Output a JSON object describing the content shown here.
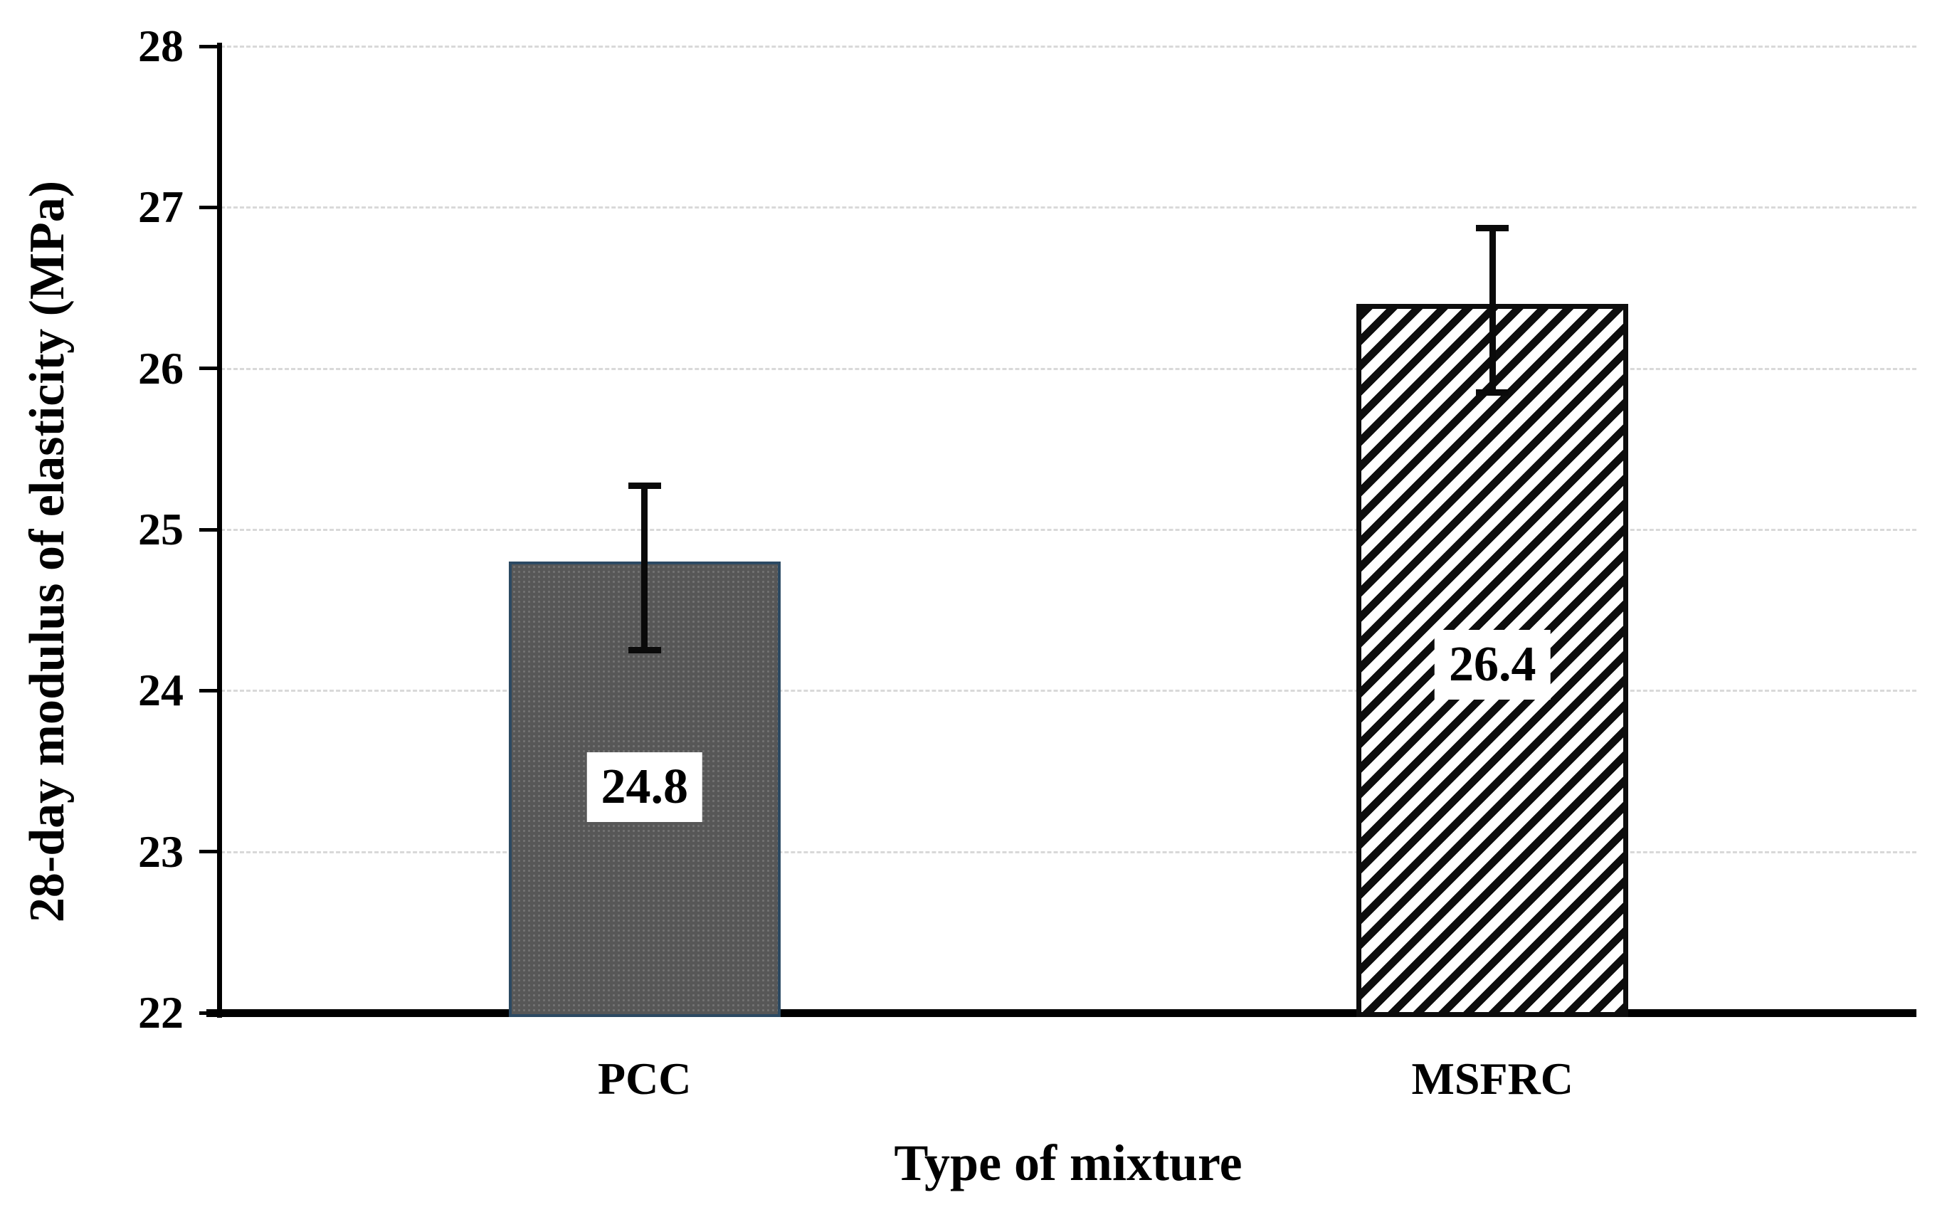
{
  "chart_data": {
    "type": "bar",
    "title": "",
    "xlabel": "Type of mixture",
    "ylabel": "28-day modulus of elasticity (MPa)",
    "categories": [
      "PCC",
      "MSFRC"
    ],
    "values": [
      24.8,
      26.4
    ],
    "data_labels": [
      "24.8",
      "26.4"
    ],
    "label_y_positions": [
      23.4,
      24.16
    ],
    "error_bars": [
      {
        "low": 24.25,
        "high": 25.27
      },
      {
        "low": 25.85,
        "high": 26.87
      }
    ],
    "ylim": [
      22,
      28
    ],
    "yticks": [
      22,
      23,
      24,
      25,
      26,
      27,
      28
    ],
    "grid": {
      "horizontal": true,
      "style": "dashed",
      "vertical": false
    },
    "legend": "none",
    "bar_styles": [
      {
        "category": "PCC",
        "pattern": "dotted-texture",
        "fill": "#575757",
        "border": "#2c4a63"
      },
      {
        "category": "MSFRC",
        "pattern": "diagonal-hatch",
        "fill": "#ffffff",
        "border": "#0d0d0d"
      }
    ],
    "colors": {
      "axis": "#000000",
      "gridline": "#d9d9d9",
      "text": "#000000",
      "error_bar": "#0a0a0a",
      "pcc_fill": "#575757",
      "pcc_border": "#2c4a63",
      "hatch": "#0d0d0d",
      "label_background": "#ffffff"
    }
  }
}
